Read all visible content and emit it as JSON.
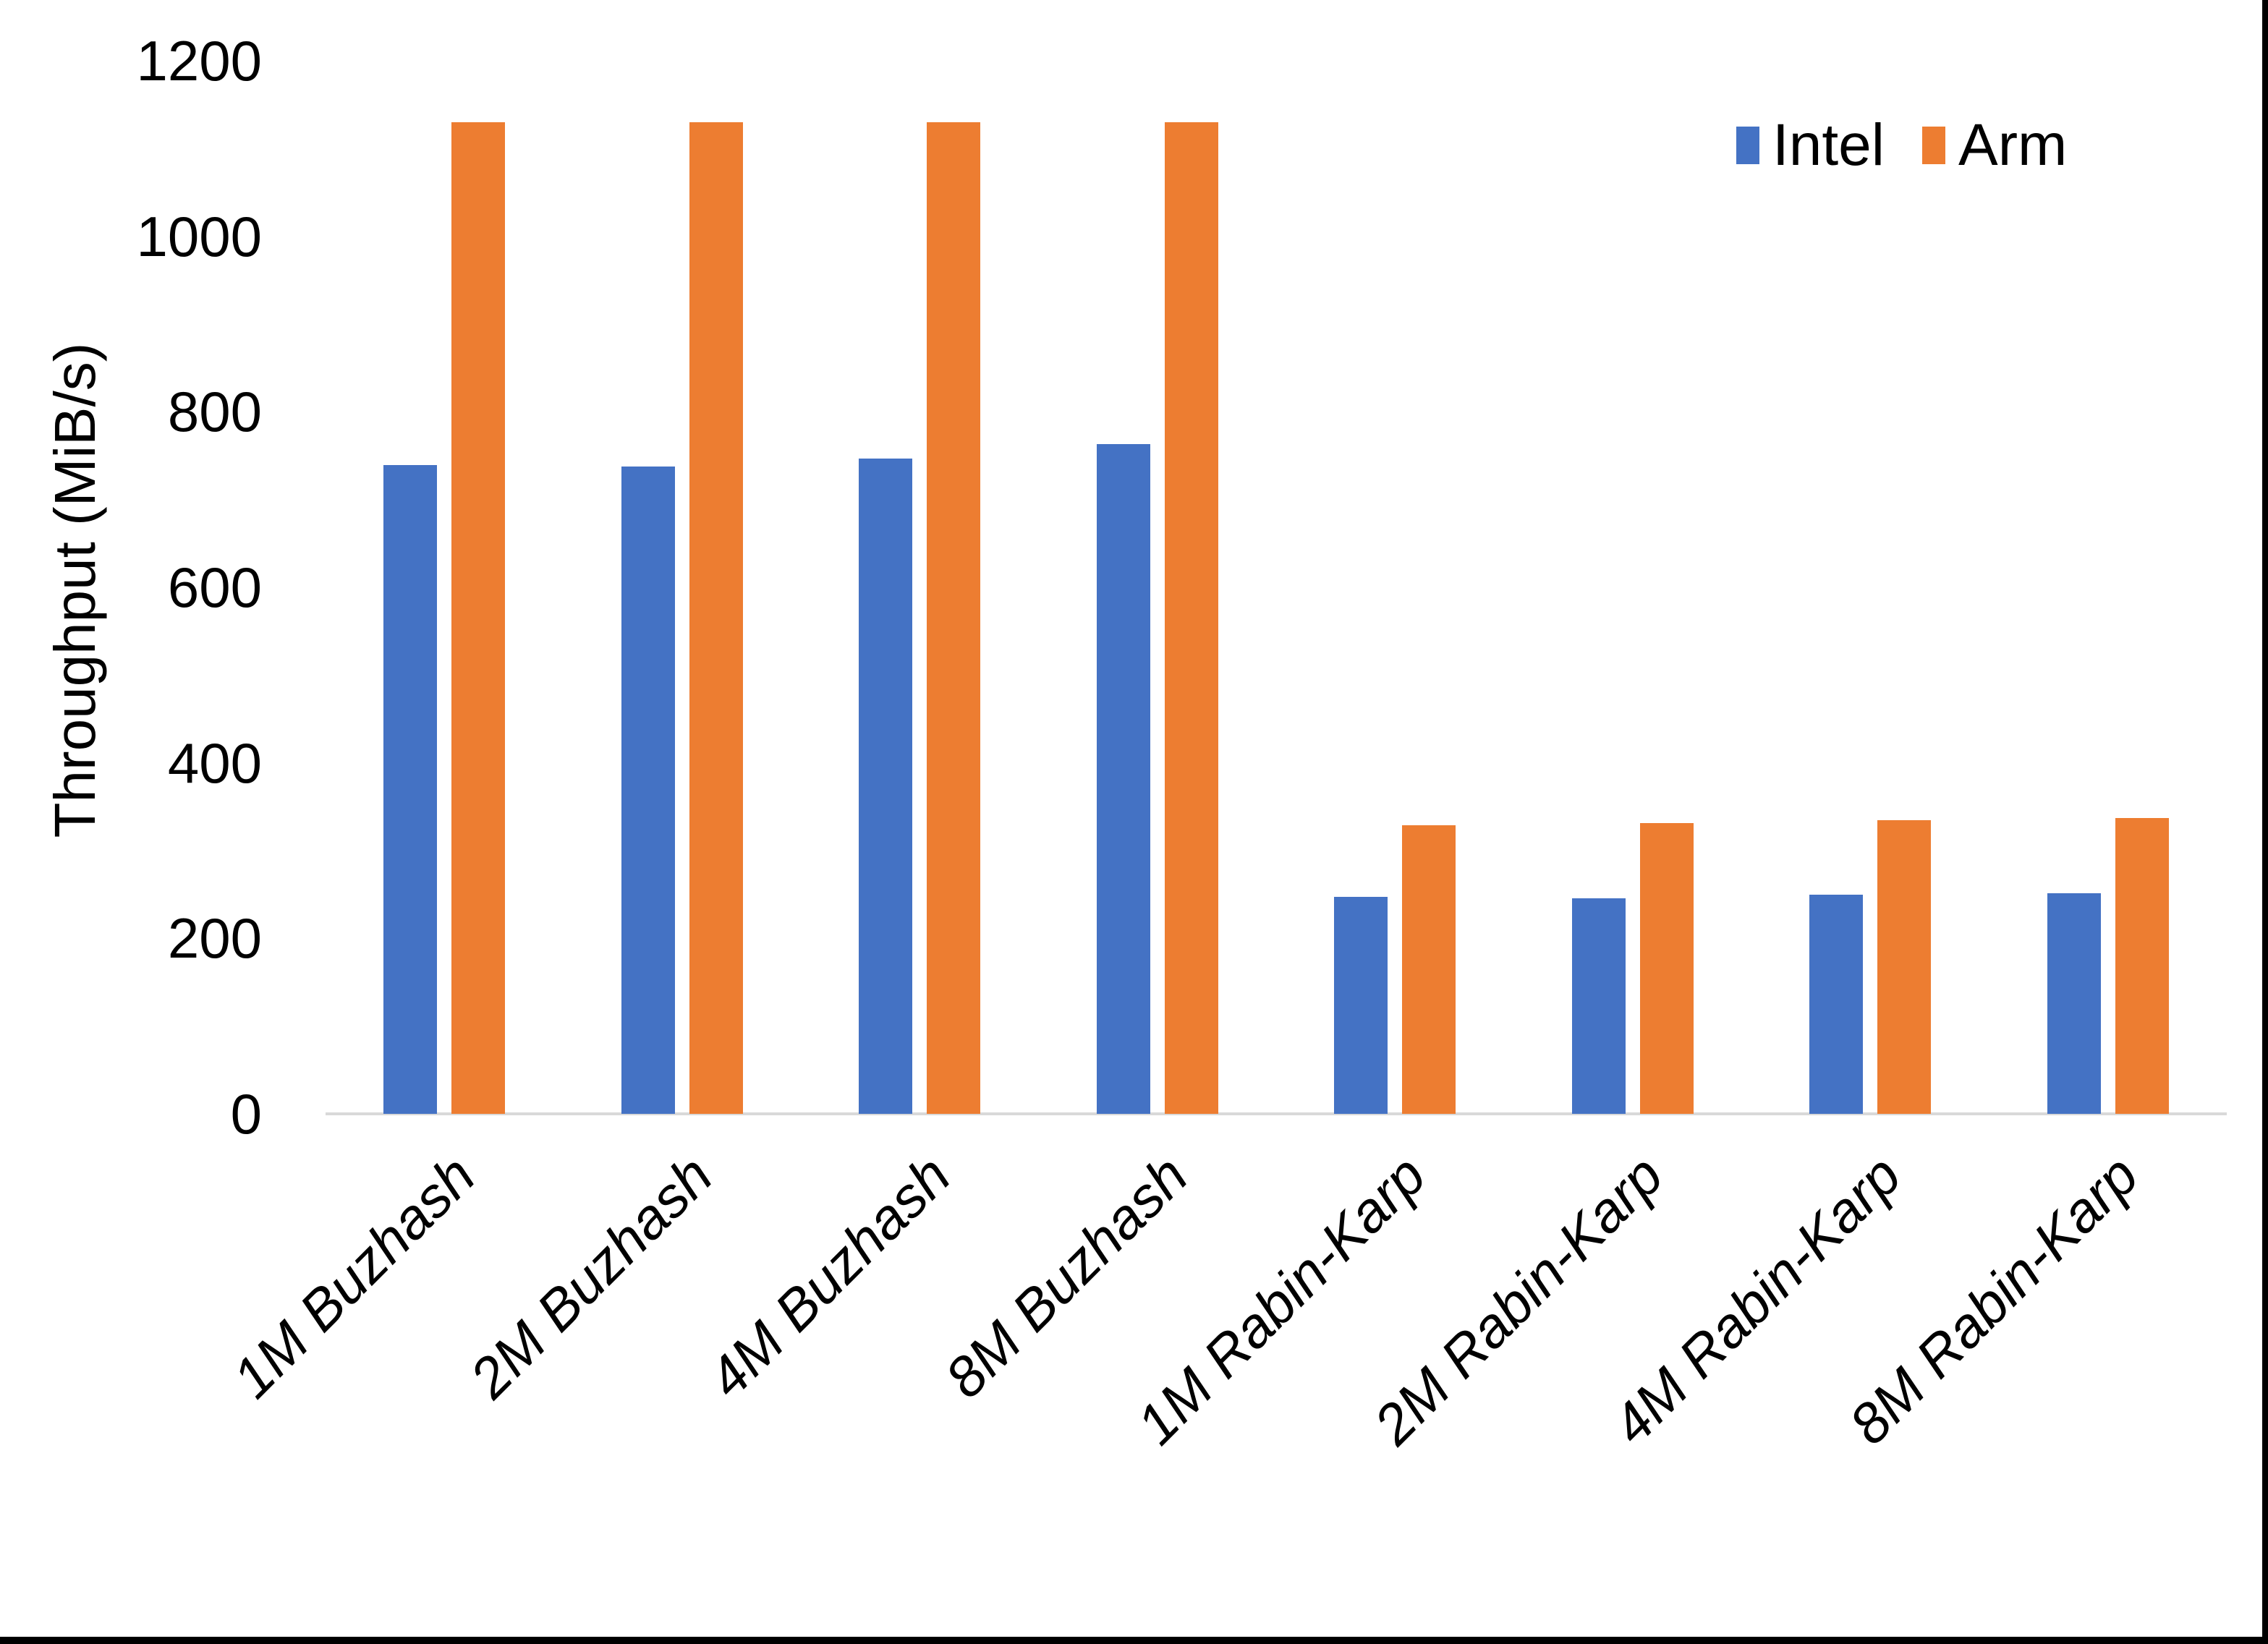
{
  "figure": {
    "background_color": "#FFFFFF",
    "right_border_color": "#000000",
    "bottom_border_color": "#000000",
    "baseline_color": "#D9D9D9"
  },
  "chart_data": {
    "type": "bar",
    "title": "",
    "xlabel": "",
    "ylabel": "Throughput (MiB/s)",
    "ylim": [
      0,
      1200
    ],
    "yticks": [
      0,
      200,
      400,
      600,
      800,
      1000,
      1200
    ],
    "grid": false,
    "legend_position": "top-right",
    "x_tick_style": "italic, rotated 45deg",
    "categories": [
      "1M Buzhash",
      "2M Buzhash",
      "4M Buzhash",
      "8M Buzhash",
      "1M Rabin-Karp",
      "2M Rabin-Karp",
      "4M Rabin-Karp",
      "8M Rabin-Karp"
    ],
    "series": [
      {
        "name": "Intel",
        "color": "#4472C4",
        "values": [
          739,
          738,
          747,
          763,
          247,
          246,
          250,
          251
        ]
      },
      {
        "name": "Arm",
        "color": "#ED7D31",
        "values": [
          1130,
          1130,
          1130,
          1130,
          329,
          331,
          335,
          337
        ]
      }
    ]
  }
}
